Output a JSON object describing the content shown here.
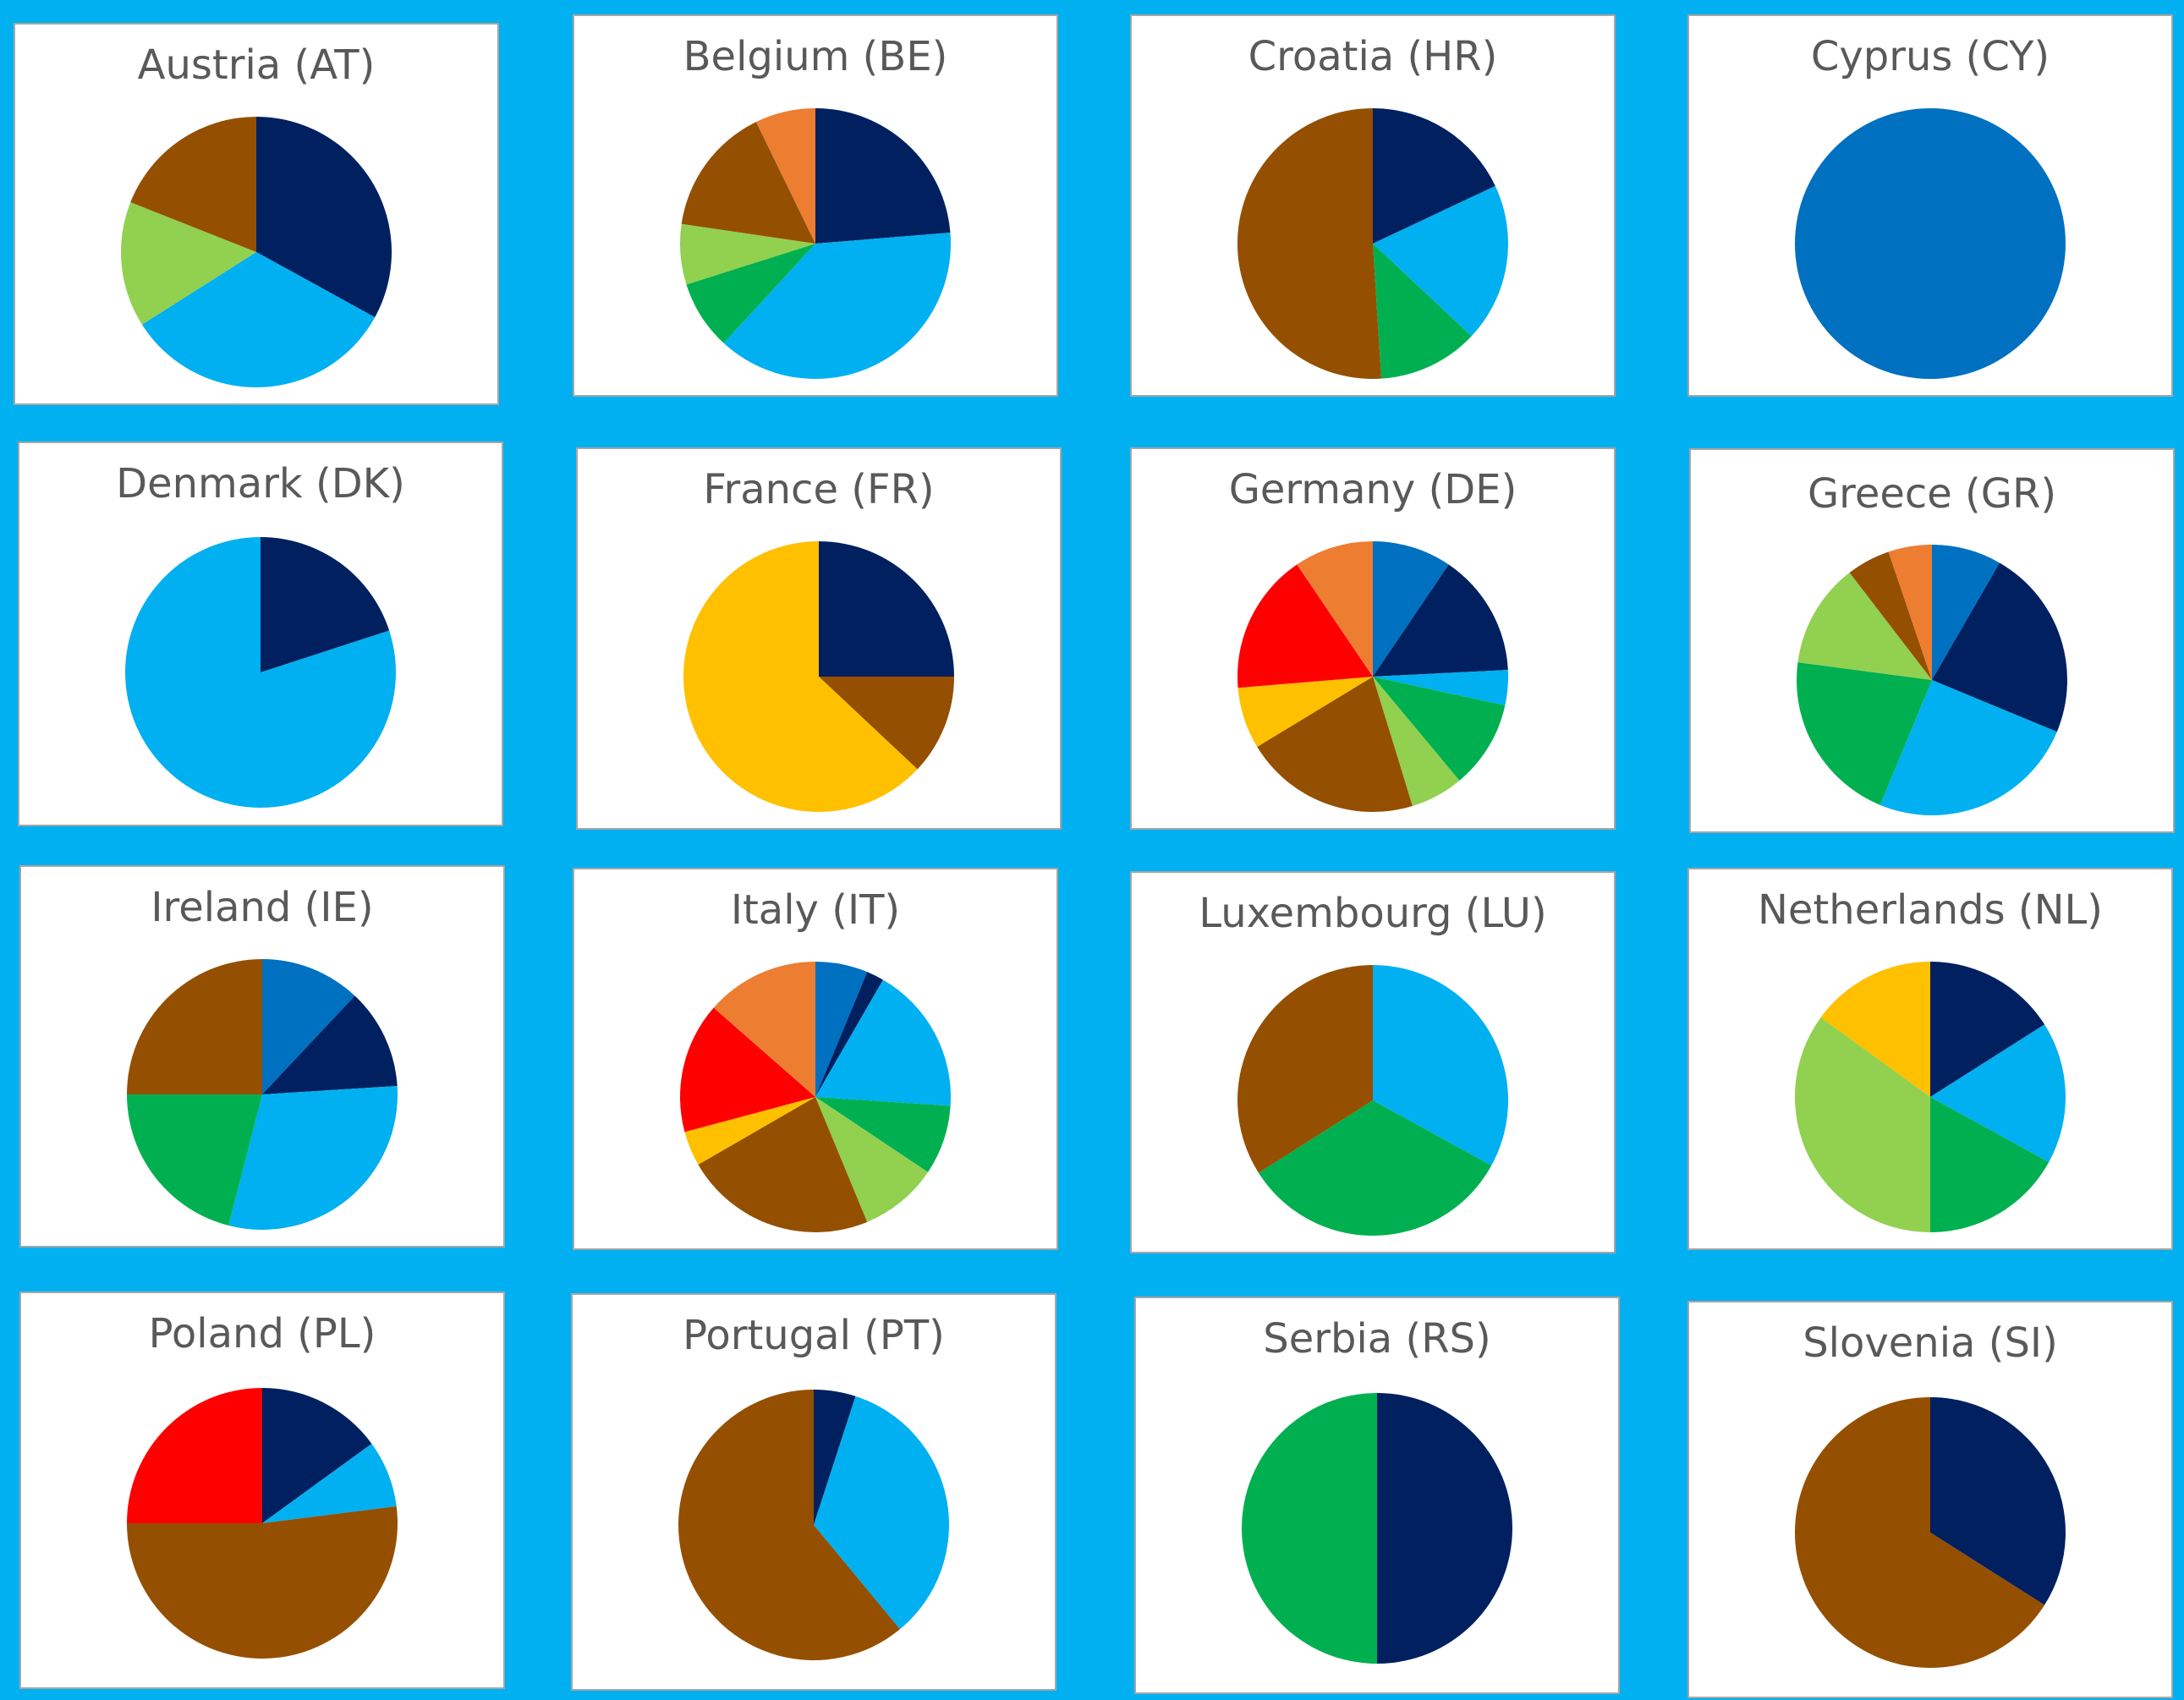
{
  "chart_data": [
    {
      "type": "pie",
      "title": "Austria (AT)",
      "values": [
        33,
        33,
        15,
        19
      ],
      "colors": [
        "#002060",
        "#00B0F0",
        "#92D050",
        "#954F00"
      ]
    },
    {
      "type": "pie",
      "title": "Belgium (BE)",
      "values": [
        23,
        37,
        8,
        7,
        15,
        7
      ],
      "colors": [
        "#002060",
        "#00B0F0",
        "#00B050",
        "#92D050",
        "#954F00",
        "#ED7D31"
      ]
    },
    {
      "type": "pie",
      "title": "Croatia (HR)",
      "values": [
        18,
        19,
        12,
        51
      ],
      "colors": [
        "#002060",
        "#00B0F0",
        "#00B050",
        "#954F00"
      ]
    },
    {
      "type": "pie",
      "title": "Cyprus (CY)",
      "values": [
        100
      ],
      "colors": [
        "#0070C0"
      ]
    },
    {
      "type": "pie",
      "title": "Denmark (DK)",
      "values": [
        20,
        80
      ],
      "colors": [
        "#002060",
        "#00B0F0"
      ]
    },
    {
      "type": "pie",
      "title": "France (FR)",
      "values": [
        25,
        12,
        63
      ],
      "colors": [
        "#002060",
        "#954F00",
        "#FFC000"
      ]
    },
    {
      "type": "pie",
      "title": "Germany (DE)",
      "values": [
        9,
        14,
        4,
        10,
        6,
        20,
        7,
        16,
        9
      ],
      "colors": [
        "#0070C0",
        "#002060",
        "#00B0F0",
        "#00B050",
        "#92D050",
        "#954F00",
        "#FFC000",
        "#FF0000",
        "#ED7D31"
      ]
    },
    {
      "type": "pie",
      "title": "Greece (GR)",
      "values": [
        8,
        22,
        24,
        20,
        12,
        5,
        5
      ],
      "colors": [
        "#0070C0",
        "#002060",
        "#00B0F0",
        "#00B050",
        "#92D050",
        "#954F00",
        "#ED7D31"
      ]
    },
    {
      "type": "pie",
      "title": "Ireland (IE)",
      "values": [
        12,
        12,
        30,
        21,
        25
      ],
      "colors": [
        "#0070C0",
        "#002060",
        "#00B0F0",
        "#00B050",
        "#954F00"
      ]
    },
    {
      "type": "pie",
      "title": "Italy (IT)",
      "values": [
        6,
        2,
        17,
        8,
        9,
        22,
        4,
        15,
        13
      ],
      "colors": [
        "#0070C0",
        "#002060",
        "#00B0F0",
        "#00B050",
        "#92D050",
        "#954F00",
        "#FFC000",
        "#FF0000",
        "#ED7D31"
      ]
    },
    {
      "type": "pie",
      "title": "Luxembourg (LU)",
      "values": [
        33,
        33,
        34
      ],
      "colors": [
        "#00B0F0",
        "#00B050",
        "#954F00"
      ]
    },
    {
      "type": "pie",
      "title": "Netherlands (NL)",
      "values": [
        16,
        17,
        17,
        35,
        15
      ],
      "colors": [
        "#002060",
        "#00B0F0",
        "#00B050",
        "#92D050",
        "#FFC000"
      ]
    },
    {
      "type": "pie",
      "title": "Poland (PL)",
      "values": [
        15,
        8,
        52,
        25
      ],
      "colors": [
        "#002060",
        "#00B0F0",
        "#954F00",
        "#FF0000"
      ]
    },
    {
      "type": "pie",
      "title": "Portugal (PT)",
      "values": [
        5,
        34,
        61
      ],
      "colors": [
        "#002060",
        "#00B0F0",
        "#954F00"
      ]
    },
    {
      "type": "pie",
      "title": "Serbia (RS)",
      "values": [
        50,
        50
      ],
      "colors": [
        "#002060",
        "#00B050"
      ]
    },
    {
      "type": "pie",
      "title": "Slovenia (SI)",
      "values": [
        34,
        66
      ],
      "colors": [
        "#002060",
        "#954F00"
      ]
    }
  ]
}
